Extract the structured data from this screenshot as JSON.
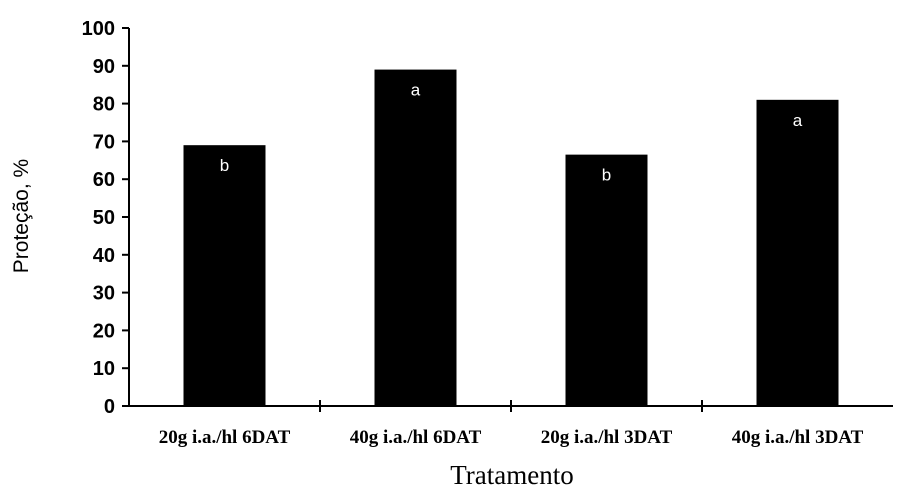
{
  "chart_data": {
    "type": "bar",
    "categories": [
      "20g i.a./hl 6DAT",
      "40g i.a./hl 6DAT",
      "20g i.a./hl 3DAT",
      "40g i.a./hl 3DAT"
    ],
    "values": [
      69,
      89,
      66.5,
      81
    ],
    "bar_labels": [
      "b",
      "a",
      "b",
      "a"
    ],
    "xlabel": "Tratamento",
    "ylabel": "Proteção, %",
    "ylim": [
      0,
      100
    ],
    "yticks": [
      0,
      10,
      20,
      30,
      40,
      50,
      60,
      70,
      80,
      90,
      100
    ],
    "grid": false,
    "legend": "none",
    "colors": {
      "bar": "#000000",
      "label": "#ffffff"
    }
  }
}
